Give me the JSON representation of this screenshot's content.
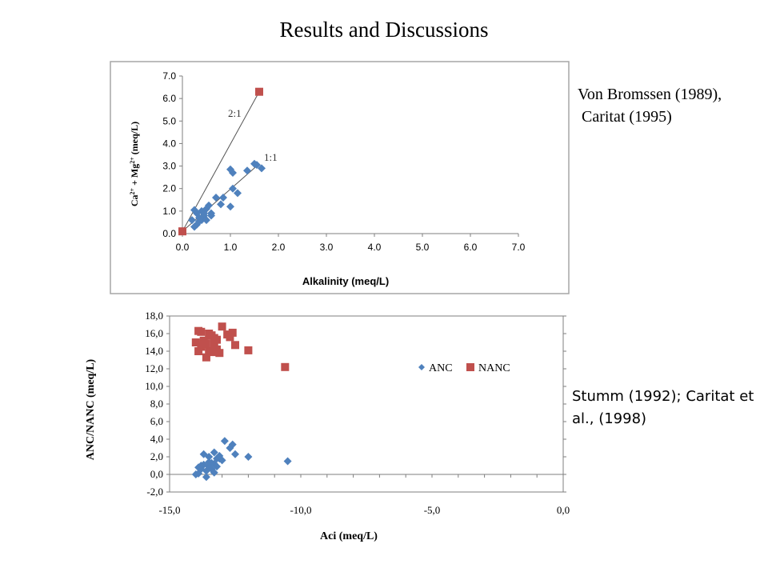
{
  "page": {
    "title": "Results and Discussions"
  },
  "references": {
    "top": [
      "Von Bromssen (1989),",
      " Caritat (1995)"
    ],
    "bottom": "Stumm (1992); Caritat et al., (1998)"
  },
  "colors": {
    "anc": "#4F81BD",
    "nanc": "#C0504D",
    "axis": "#7f7f7f",
    "frame": "#a6a6a6",
    "line": "#555555"
  },
  "chart_data": [
    {
      "type": "scatter",
      "title": "",
      "xlabel": "Alkalinity (meq/L)",
      "ylabel": "Ca2+ + Mg2+ (meq/L)",
      "xlim": [
        0,
        7
      ],
      "ylim": [
        0,
        7
      ],
      "x_ticks": [
        "0.0",
        "1.0",
        "2.0",
        "3.0",
        "4.0",
        "5.0",
        "6.0",
        "7.0"
      ],
      "y_ticks": [
        "0.0",
        "1.0",
        "2.0",
        "3.0",
        "4.0",
        "5.0",
        "6.0",
        "7.0"
      ],
      "annotations": [
        {
          "text": "2:1",
          "x": 1.0,
          "y": 5.2
        },
        {
          "text": "1:1",
          "x": 1.7,
          "y": 3.3
        }
      ],
      "lines": [
        {
          "from": [
            0.0,
            0.1
          ],
          "to": [
            1.6,
            6.3
          ]
        },
        {
          "from": [
            0.0,
            0.1
          ],
          "to": [
            1.6,
            3.1
          ]
        }
      ],
      "series": [
        {
          "marker": "diamond",
          "points": [
            [
              0.25,
              1.05
            ],
            [
              0.3,
              0.9
            ],
            [
              0.35,
              0.7
            ],
            [
              0.2,
              0.6
            ],
            [
              0.3,
              0.4
            ],
            [
              0.4,
              0.6
            ],
            [
              0.45,
              0.8
            ],
            [
              0.5,
              1.1
            ],
            [
              0.55,
              1.25
            ],
            [
              0.6,
              0.9
            ],
            [
              0.5,
              0.6
            ],
            [
              0.4,
              1.0
            ],
            [
              0.35,
              0.55
            ],
            [
              0.6,
              0.8
            ],
            [
              0.7,
              1.6
            ],
            [
              0.8,
              1.3
            ],
            [
              0.85,
              1.6
            ],
            [
              1.0,
              1.2
            ],
            [
              1.0,
              2.85
            ],
            [
              1.05,
              2.7
            ],
            [
              1.05,
              2.0
            ],
            [
              1.15,
              1.8
            ],
            [
              1.35,
              2.8
            ],
            [
              1.5,
              3.1
            ],
            [
              1.55,
              3.05
            ],
            [
              1.65,
              2.9
            ],
            [
              0.25,
              0.3
            ],
            [
              0.45,
              0.9
            ]
          ]
        },
        {
          "marker": "square",
          "points": [
            [
              0.0,
              0.1
            ],
            [
              1.6,
              6.3
            ]
          ]
        }
      ]
    },
    {
      "type": "scatter",
      "title": "",
      "xlabel": "Aci (meq/L)",
      "ylabel": "ANC/NANC (meq/L)",
      "xlim": [
        -15,
        0
      ],
      "ylim": [
        -2,
        18
      ],
      "x_ticks": [
        "-15,0",
        "-10,0",
        "-5,0",
        "0,0"
      ],
      "y_ticks": [
        "-2,0",
        "0,0",
        "2,0",
        "4,0",
        "6,0",
        "8,0",
        "10,0",
        "12,0",
        "14,0",
        "16,0",
        "18,0"
      ],
      "legend": "inside-right",
      "series": [
        {
          "name": "ANC",
          "marker": "diamond",
          "points": [
            [
              -13.9,
              0.1
            ],
            [
              -13.8,
              0.6
            ],
            [
              -13.7,
              1.1
            ],
            [
              -13.6,
              0.4
            ],
            [
              -13.5,
              0.9
            ],
            [
              -13.4,
              1.3
            ],
            [
              -13.3,
              2.5
            ],
            [
              -13.2,
              1.8
            ],
            [
              -13.8,
              1.0
            ],
            [
              -13.6,
              -0.3
            ],
            [
              -13.5,
              1.4
            ],
            [
              -13.4,
              0.6
            ],
            [
              -13.3,
              1.2
            ],
            [
              -13.2,
              0.9
            ],
            [
              -13.1,
              1.8
            ],
            [
              -13.0,
              1.6
            ],
            [
              -13.7,
              2.3
            ],
            [
              -13.1,
              2.1
            ],
            [
              -12.9,
              3.8
            ],
            [
              -12.6,
              3.4
            ],
            [
              -12.5,
              2.3
            ],
            [
              -12.7,
              3.0
            ],
            [
              -12.0,
              2.0
            ],
            [
              -10.5,
              1.5
            ],
            [
              -13.9,
              0.8
            ],
            [
              -13.5,
              2.0
            ],
            [
              -13.3,
              0.2
            ],
            [
              -14.0,
              0.0
            ]
          ]
        },
        {
          "name": "NANC",
          "marker": "square",
          "points": [
            [
              -13.9,
              16.3
            ],
            [
              -13.8,
              14.5
            ],
            [
              -13.7,
              15.2
            ],
            [
              -13.6,
              13.3
            ],
            [
              -13.5,
              14.0
            ],
            [
              -13.4,
              15.8
            ],
            [
              -13.3,
              14.7
            ],
            [
              -13.2,
              15.3
            ],
            [
              -13.1,
              13.8
            ],
            [
              -13.9,
              14.0
            ],
            [
              -13.8,
              16.2
            ],
            [
              -13.7,
              14.8
            ],
            [
              -13.5,
              16.0
            ],
            [
              -13.4,
              13.9
            ],
            [
              -13.3,
              15.5
            ],
            [
              -13.2,
              14.2
            ],
            [
              -13.0,
              16.8
            ],
            [
              -12.8,
              15.9
            ],
            [
              -12.6,
              16.1
            ],
            [
              -12.5,
              14.7
            ],
            [
              -12.7,
              15.6
            ],
            [
              -12.0,
              14.1
            ],
            [
              -10.6,
              12.2
            ],
            [
              -14.0,
              15.0
            ],
            [
              -13.6,
              14.9
            ],
            [
              -13.3,
              14.0
            ]
          ]
        }
      ]
    }
  ]
}
